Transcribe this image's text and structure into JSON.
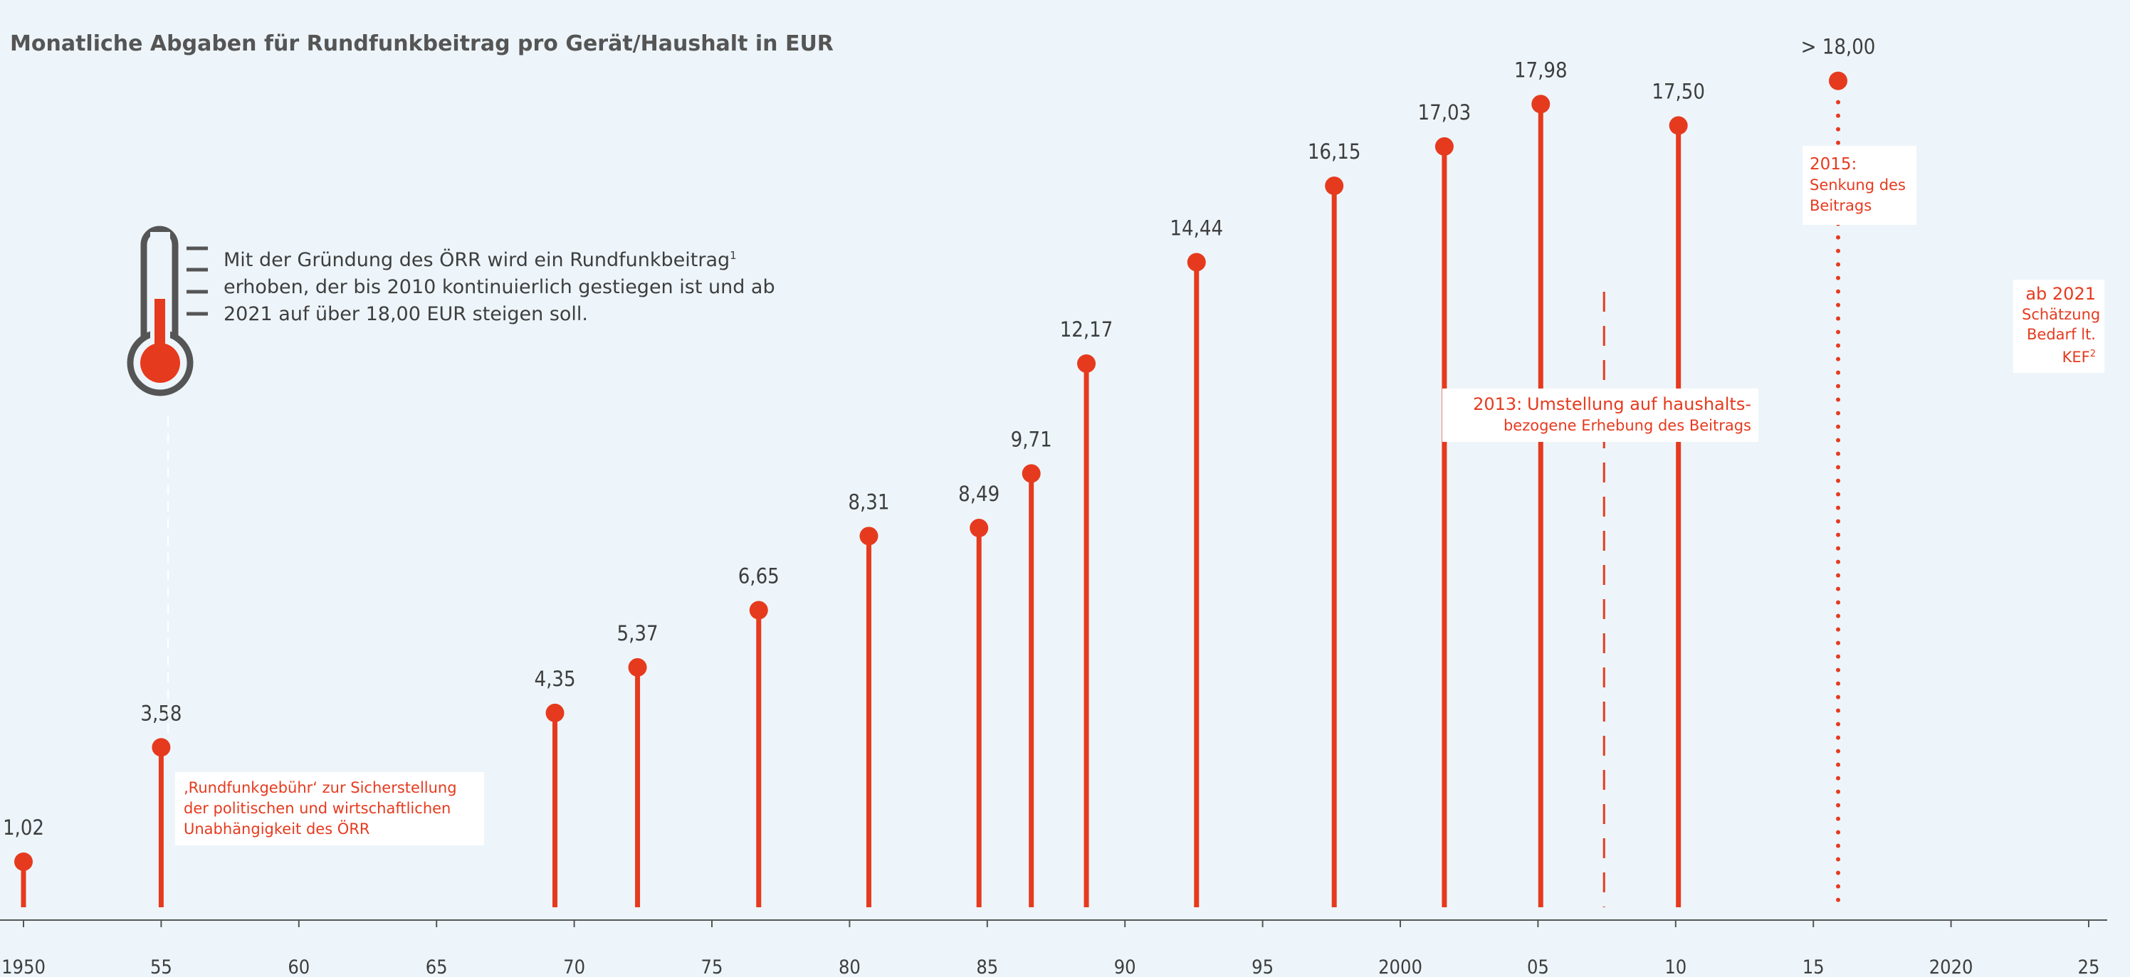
{
  "title": "Monatliche Abgaben für Rundfunkbeitrag pro Gerät/Haushalt in EUR",
  "intro": {
    "line1": "Mit der Gründung des ÖRR wird ein Rundfunkbeitrag",
    "sup1": "1",
    "line2": "erhoben, der bis 2010 kontinuierlich gestiegen ist und ab",
    "line3": "2021 auf über 18,00 EUR steigen soll."
  },
  "notes": {
    "n1955": {
      "line1": "‚Rundfunkgebühr‘ zur Sicherstellung",
      "line2": "der politischen und wirtschaftlichen",
      "line3": "Unabhängigkeit des ÖRR"
    },
    "n2013": {
      "year": "2013:",
      "line1": "Umstellung auf haushalts-",
      "line2": "bezogene Erhebung des Beitrags"
    },
    "n2015": {
      "year": "2015:",
      "line1": "Senkung des",
      "line2": "Beitrags"
    },
    "n2021": {
      "year": "ab 2021",
      "line1": "Schätzung",
      "line2": "Bedarf lt.",
      "line3": "KEF",
      "sup": "2"
    }
  },
  "colors": {
    "accent": "#e63a1e",
    "axis": "#555555",
    "text": "#3e3e3e",
    "background": "#edf5fa"
  },
  "icons": [
    "thermometer-icon"
  ],
  "chart_data": {
    "type": "lollipop",
    "x_min": 1950,
    "x_max": 2025,
    "y_min": 0,
    "y_max": 18,
    "x_ticks": [
      {
        "value": 1950,
        "label": "1950"
      },
      {
        "value": 1955,
        "label": "55"
      },
      {
        "value": 1960,
        "label": "60"
      },
      {
        "value": 1965,
        "label": "65"
      },
      {
        "value": 1970,
        "label": "70"
      },
      {
        "value": 1975,
        "label": "75"
      },
      {
        "value": 1980,
        "label": "80"
      },
      {
        "value": 1985,
        "label": "85"
      },
      {
        "value": 1990,
        "label": "90"
      },
      {
        "value": 1995,
        "label": "95"
      },
      {
        "value": 2000,
        "label": "2000"
      },
      {
        "value": 2005,
        "label": "05"
      },
      {
        "value": 2010,
        "label": "10"
      },
      {
        "value": 2015,
        "label": "15"
      },
      {
        "value": 2020,
        "label": "2020"
      },
      {
        "value": 2025,
        "label": "25"
      }
    ],
    "points": [
      {
        "x": 1950,
        "y": 1.02,
        "label": "1,02"
      },
      {
        "x": 1955,
        "y": 3.58,
        "label": "3,58"
      },
      {
        "x": 1969.3,
        "y": 4.35,
        "label": "4,35"
      },
      {
        "x": 1972.3,
        "y": 5.37,
        "label": "5,37"
      },
      {
        "x": 1976.7,
        "y": 6.65,
        "label": "6,65"
      },
      {
        "x": 1980.7,
        "y": 8.31,
        "label": "8,31"
      },
      {
        "x": 1984.7,
        "y": 8.49,
        "label": "8,49"
      },
      {
        "x": 1986.6,
        "y": 9.71,
        "label": "9,71"
      },
      {
        "x": 1988.6,
        "y": 12.17,
        "label": "12,17"
      },
      {
        "x": 1992.6,
        "y": 14.44,
        "label": "14,44"
      },
      {
        "x": 1997.6,
        "y": 16.15,
        "label": "16,15"
      },
      {
        "x": 2001.6,
        "y": 17.03,
        "label": "17,03"
      },
      {
        "x": 2005.1,
        "y": 17.98,
        "label": "17,98"
      },
      {
        "x": 2010.1,
        "y": 17.5,
        "label": "17,50"
      },
      {
        "x": 2015.9,
        "y": 18.5,
        "label": "> 18,00",
        "estimate": true
      }
    ],
    "markers": [
      {
        "x": 2007.4,
        "style": "dashed"
      }
    ]
  }
}
